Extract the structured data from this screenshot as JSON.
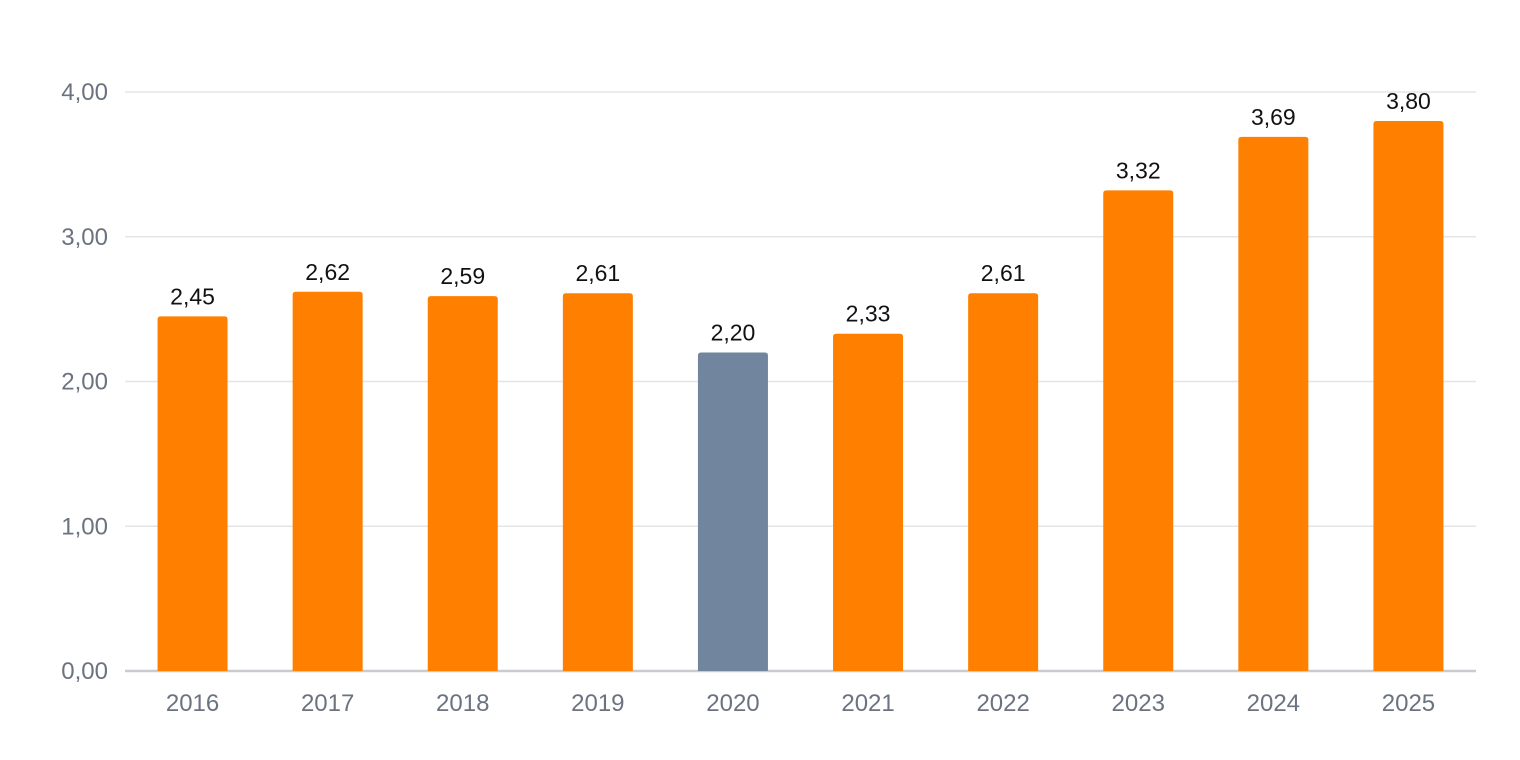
{
  "chart_data": {
    "type": "bar",
    "title": "",
    "xlabel": "",
    "ylabel": "",
    "categories": [
      "2016",
      "2017",
      "2018",
      "2019",
      "2020",
      "2021",
      "2022",
      "2023",
      "2024",
      "2025"
    ],
    "values": [
      2.45,
      2.62,
      2.59,
      2.61,
      2.2,
      2.33,
      2.61,
      3.32,
      3.69,
      3.8
    ],
    "value_labels": [
      "2,45",
      "2,62",
      "2,59",
      "2,61",
      "2,20",
      "2,33",
      "2,61",
      "3,32",
      "3,69",
      "3,80"
    ],
    "highlight_index": 4,
    "ylim": [
      0,
      4
    ],
    "y_ticks": [
      0,
      1,
      2,
      3,
      4
    ],
    "y_tick_labels": [
      "0,00",
      "1,00",
      "2,00",
      "3,00",
      "4,00"
    ],
    "grid": true,
    "legend": "none",
    "colors": {
      "bar": "#ff7f00",
      "highlight": "#71869e",
      "grid": "#e3e5e8",
      "axis": "#c8cbd0",
      "tick_text": "#6b7280",
      "label_text": "#111111"
    }
  }
}
